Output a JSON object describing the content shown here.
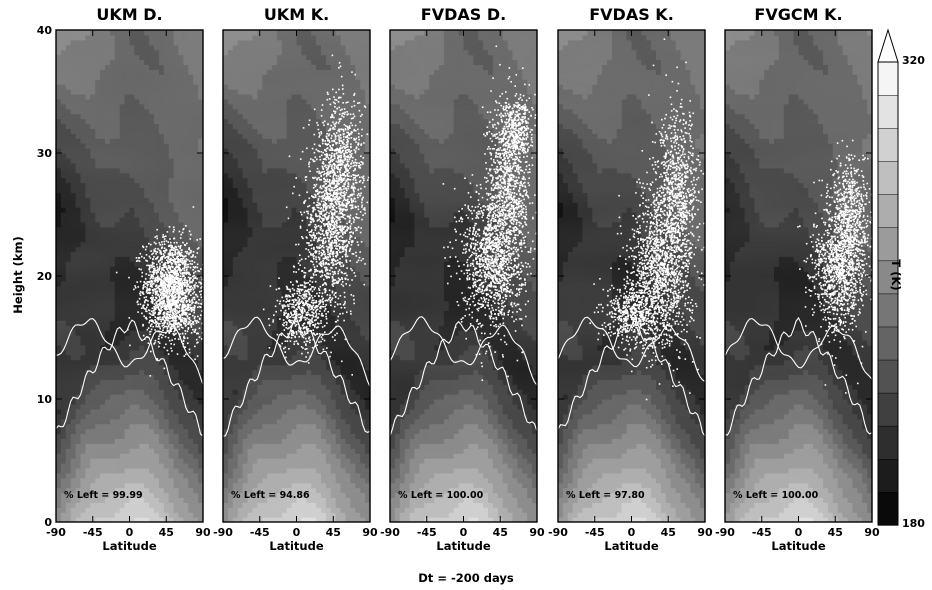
{
  "chart_data": {
    "type": "heatmap",
    "caption": "Dt = -200 days",
    "ylabel": "Height (km)",
    "xlabel": "Latitude",
    "xlim": [
      -90,
      90
    ],
    "ylim": [
      0,
      40
    ],
    "xticks": [
      "-90",
      "-45",
      "0",
      "45",
      "90"
    ],
    "yticks": [
      "0",
      "10",
      "20",
      "30",
      "40"
    ],
    "colorbar": {
      "label": "T (K)",
      "min_label": "180",
      "max_label": "320",
      "min": 180,
      "max": 320,
      "levels": 14,
      "extend": "max"
    },
    "colors": {
      "particles": "#ffffff",
      "tropopause": "#ffffff",
      "frame": "#000000"
    },
    "panels": [
      {
        "title": "UKM D.",
        "note": "% Left = 99.99",
        "percent_left": 99.99,
        "cloud": [
          {
            "lat": 50,
            "z": 19.5,
            "sx": 22,
            "sz": 1.8,
            "n": 1400
          },
          {
            "lat": 55,
            "z": 17,
            "sx": 25,
            "sz": 1.4,
            "n": 500
          }
        ]
      },
      {
        "title": "UKM K.",
        "note": "% Left = 94.86",
        "percent_left": 94.86,
        "cloud": [
          {
            "lat": 40,
            "z": 24,
            "sx": 22,
            "sz": 3.5,
            "n": 1200
          },
          {
            "lat": 55,
            "z": 29,
            "sx": 18,
            "sz": 3,
            "n": 700
          },
          {
            "lat": 5,
            "z": 17,
            "sx": 20,
            "sz": 1.4,
            "n": 500
          }
        ]
      },
      {
        "title": "FVDAS D.",
        "note": "% Left = 100.00",
        "percent_left": 100.0,
        "cloud": [
          {
            "lat": 35,
            "z": 21.5,
            "sx": 25,
            "sz": 2.8,
            "n": 1300
          },
          {
            "lat": 55,
            "z": 28,
            "sx": 18,
            "sz": 3.2,
            "n": 900
          },
          {
            "lat": 65,
            "z": 32,
            "sx": 12,
            "sz": 1.3,
            "n": 300
          }
        ]
      },
      {
        "title": "FVDAS K.",
        "note": "% Left = 97.80",
        "percent_left": 97.8,
        "cloud": [
          {
            "lat": 35,
            "z": 20.5,
            "sx": 25,
            "sz": 3.2,
            "n": 1400
          },
          {
            "lat": 55,
            "z": 27,
            "sx": 18,
            "sz": 3.2,
            "n": 800
          },
          {
            "lat": 0,
            "z": 17,
            "sx": 22,
            "sz": 1.2,
            "n": 500
          }
        ]
      },
      {
        "title": "FVGCM K.",
        "note": "% Left = 100.00",
        "percent_left": 100.0,
        "cloud": [
          {
            "lat": 50,
            "z": 20.5,
            "sx": 22,
            "sz": 2.5,
            "n": 1100
          },
          {
            "lat": 62,
            "z": 25,
            "sx": 16,
            "sz": 2.2,
            "n": 600
          }
        ]
      }
    ]
  }
}
